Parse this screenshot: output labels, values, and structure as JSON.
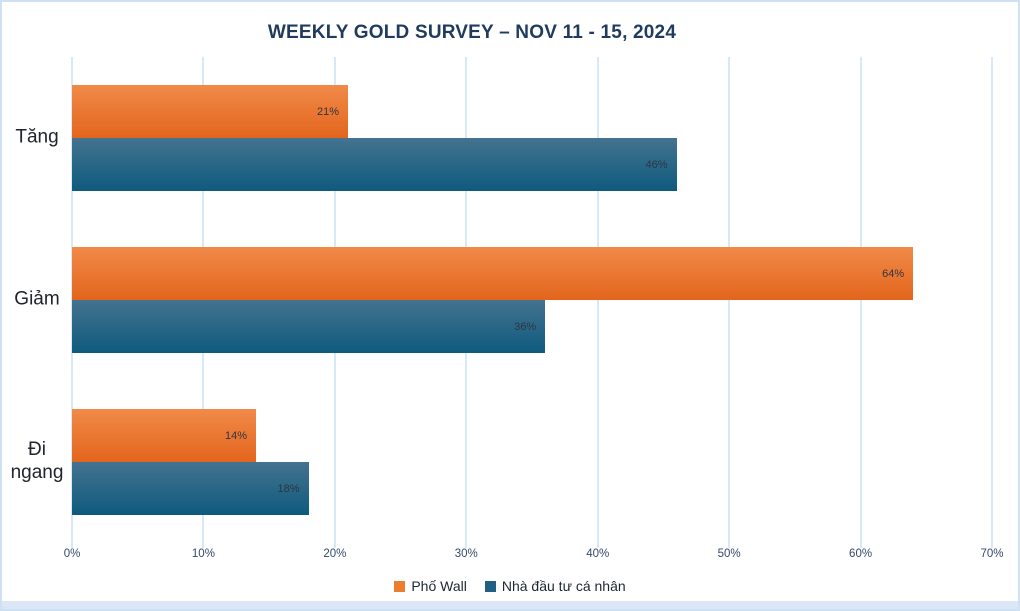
{
  "chart_data": {
    "type": "bar",
    "orientation": "horizontal",
    "title": "WEEKLY GOLD SURVEY – NOV 11 - 15, 2024",
    "categories": [
      "Tăng",
      "Giảm",
      "Đi ngang"
    ],
    "series": [
      {
        "name": "Phố Wall",
        "values": [
          21,
          64,
          14
        ],
        "labels": [
          "21%",
          "64%",
          "14%"
        ],
        "color": "#ed7d31",
        "color_top": "#f18a49",
        "color_bottom": "#e2651c"
      },
      {
        "name": "Nhà đầu tư cá nhân",
        "values": [
          46,
          36,
          18
        ],
        "labels": [
          "46%",
          "36%",
          "18%"
        ],
        "color": "#1f6083",
        "color_top": "#44738f",
        "color_bottom": "#0f5a7e"
      }
    ],
    "xlim": [
      0,
      70
    ],
    "x_tick_values": [
      0,
      10,
      20,
      30,
      40,
      50,
      60,
      70
    ],
    "x_tick_labels": [
      "0%",
      "10%",
      "20%",
      "30%",
      "40%",
      "50%",
      "60%",
      "70%"
    ],
    "grid": "vertical",
    "legend_position": "bottom",
    "colors": {
      "title_text": "#1f3b5e",
      "gridline": "#d9e8f7",
      "frame_border": "#cfe0f2",
      "bottom_strip": "#dbe7f6",
      "bar_label_text": "#2e3542",
      "category_label_text": "#20242e",
      "tick_label_text": "#33496a"
    }
  }
}
